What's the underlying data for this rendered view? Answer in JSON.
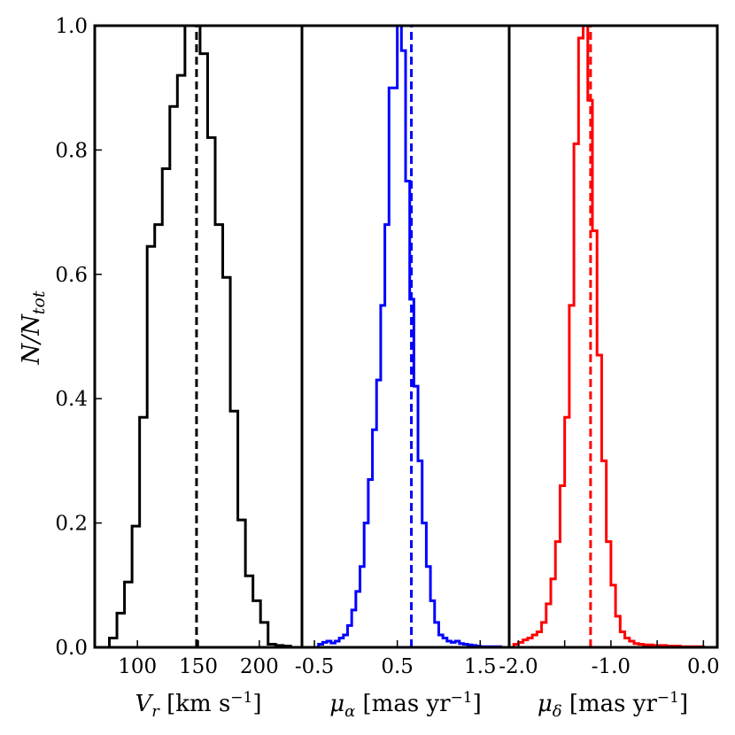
{
  "figure": {
    "ylabel": "N/N_tot",
    "ylabel_main": "N/N",
    "ylabel_sub": "tot"
  },
  "chart_data": [
    {
      "type": "histogram",
      "id": "vr",
      "color": "#000000",
      "xlabel_main": "V",
      "xlabel_sub": "r",
      "xlabel_rest": " [km s",
      "xlabel_sup": "−1",
      "xlabel_end": "]",
      "xlim": [
        65,
        235
      ],
      "ylim": [
        0,
        1
      ],
      "xticks": [
        100,
        150,
        200
      ],
      "xtick_labels": [
        "100",
        "150",
        "200"
      ],
      "yticks": [
        0,
        0.2,
        0.4,
        0.6,
        0.8,
        1.0
      ],
      "ytick_labels": [
        "0.0",
        "0.2",
        "0.4",
        "0.6",
        "0.8",
        "1.0"
      ],
      "bin_edges": [
        77,
        83.2,
        89.4,
        95.6,
        101.8,
        108,
        114.2,
        120.4,
        126.6,
        132.8,
        139,
        145.2,
        151.4,
        157.6,
        163.8,
        170,
        176.2,
        182.4,
        188.6,
        194.8,
        201,
        207.2,
        213.4,
        219.6,
        225.8
      ],
      "counts": [
        0.015,
        0.055,
        0.105,
        0.195,
        0.37,
        0.645,
        0.68,
        0.77,
        0.87,
        0.92,
        1.0,
        1.0,
        0.955,
        0.82,
        0.68,
        0.595,
        0.38,
        0.205,
        0.115,
        0.075,
        0.04,
        0.005,
        0.003,
        0.002
      ],
      "median": 148.5
    },
    {
      "type": "histogram",
      "id": "mua",
      "color": "#0000ff",
      "xlabel_main": "μ",
      "xlabel_sub": "α",
      "xlabel_rest": " [mas yr",
      "xlabel_sup": "−1",
      "xlabel_end": "]",
      "xlim": [
        -0.65,
        1.85
      ],
      "ylim": [
        0,
        1
      ],
      "xticks": [
        -0.5,
        0.5,
        1.5
      ],
      "xtick_labels": [
        "-0.5",
        "0.5",
        "1.5"
      ],
      "bin_edges": [
        -0.45,
        -0.4,
        -0.35,
        -0.3,
        -0.25,
        -0.2,
        -0.15,
        -0.1,
        -0.05,
        0,
        0.05,
        0.1,
        0.15,
        0.2,
        0.25,
        0.3,
        0.35,
        0.4,
        0.45,
        0.5,
        0.55,
        0.6,
        0.65,
        0.7,
        0.75,
        0.8,
        0.85,
        0.9,
        0.95,
        1.0,
        1.05,
        1.1,
        1.15,
        1.2,
        1.25,
        1.3,
        1.35,
        1.4,
        1.45,
        1.5,
        1.55,
        1.6,
        1.65,
        1.7,
        1.75
      ],
      "counts": [
        0.005,
        0.008,
        0.01,
        0.007,
        0.01,
        0.015,
        0.02,
        0.035,
        0.06,
        0.09,
        0.13,
        0.2,
        0.27,
        0.35,
        0.43,
        0.55,
        0.68,
        0.9,
        0.9,
        1.0,
        0.96,
        0.75,
        0.56,
        0.42,
        0.3,
        0.2,
        0.13,
        0.075,
        0.04,
        0.02,
        0.015,
        0.01,
        0.008,
        0.01,
        0.006,
        0.005,
        0.004,
        0.003,
        0.002,
        0.001,
        0.001,
        0.001,
        0.001,
        0.001
      ],
      "median": 0.67
    },
    {
      "type": "histogram",
      "id": "mud",
      "color": "#ff0000",
      "xlabel_main": "μ",
      "xlabel_sub": "δ",
      "xlabel_rest": " [mas yr",
      "xlabel_sup": "−1",
      "xlabel_end": "]",
      "xlim": [
        -2.1,
        0.15
      ],
      "ylim": [
        0,
        1
      ],
      "xticks": [
        -2.0,
        -1.5,
        -1.0,
        -0.5,
        0.0
      ],
      "xtick_labels": [
        "-2.0",
        "",
        "-1.0",
        "",
        "0.0"
      ],
      "bin_edges": [
        -2.05,
        -2.0,
        -1.95,
        -1.9,
        -1.85,
        -1.8,
        -1.75,
        -1.7,
        -1.65,
        -1.6,
        -1.55,
        -1.5,
        -1.45,
        -1.4,
        -1.35,
        -1.3,
        -1.25,
        -1.2,
        -1.15,
        -1.1,
        -1.05,
        -1.0,
        -0.95,
        -0.9,
        -0.85,
        -0.8,
        -0.75,
        -0.7,
        -0.65,
        -0.6,
        -0.55,
        -0.5,
        -0.45,
        -0.4,
        -0.35,
        -0.3,
        -0.25,
        -0.2,
        -0.15,
        -0.1,
        -0.05,
        0.0
      ],
      "counts": [
        0.005,
        0.008,
        0.012,
        0.015,
        0.02,
        0.025,
        0.04,
        0.07,
        0.11,
        0.17,
        0.26,
        0.37,
        0.55,
        0.81,
        0.98,
        1.0,
        0.88,
        0.67,
        0.47,
        0.3,
        0.17,
        0.1,
        0.05,
        0.025,
        0.015,
        0.01,
        0.006,
        0.005,
        0.004,
        0.004,
        0.003,
        0.003,
        0.003,
        0.002,
        0.002,
        0.002,
        0.001,
        0.001,
        0.001,
        0.001,
        0.001
      ],
      "median": -1.22
    }
  ]
}
